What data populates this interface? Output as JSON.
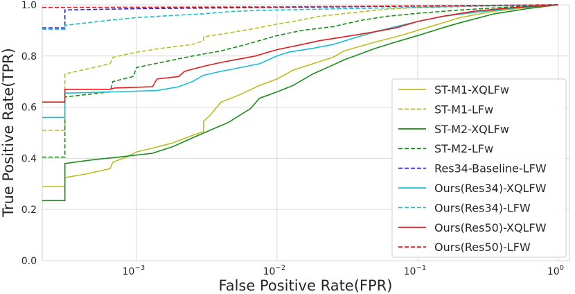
{
  "chart_data": {
    "type": "line",
    "xscale": "log",
    "title": "",
    "xlabel": "False Positive Rate(FPR)",
    "ylabel": "True Positive Rate(TPR)",
    "xlim": [
      0.000214,
      1.2
    ],
    "ylim": [
      0.0,
      1.0
    ],
    "xticks": [
      {
        "value": 0.001,
        "mantissa": "10",
        "exp": "−3"
      },
      {
        "value": 0.01,
        "mantissa": "10",
        "exp": "−2"
      },
      {
        "value": 0.1,
        "mantissa": "10",
        "exp": "−1"
      },
      {
        "value": 1,
        "mantissa": "10",
        "exp": "0"
      }
    ],
    "yticks": [
      "0.0",
      "0.2",
      "0.4",
      "0.6",
      "0.8",
      "1.0"
    ],
    "grid": true,
    "legend_position": "bottom-right",
    "series": [
      {
        "name": "ST-M1-XQLFw",
        "color": "#bcbd22",
        "dash": "solid",
        "points": [
          [
            0.0002,
            0.29
          ],
          [
            0.00031,
            0.29
          ],
          [
            0.00031,
            0.325
          ],
          [
            0.00045,
            0.34
          ],
          [
            0.00065,
            0.36
          ],
          [
            0.00068,
            0.385
          ],
          [
            0.00085,
            0.405
          ],
          [
            0.001,
            0.425
          ],
          [
            0.0013,
            0.44
          ],
          [
            0.0018,
            0.46
          ],
          [
            0.0025,
            0.49
          ],
          [
            0.003,
            0.505
          ],
          [
            0.003,
            0.545
          ],
          [
            0.0033,
            0.565
          ],
          [
            0.004,
            0.62
          ],
          [
            0.0055,
            0.65
          ],
          [
            0.0075,
            0.685
          ],
          [
            0.01,
            0.71
          ],
          [
            0.013,
            0.745
          ],
          [
            0.018,
            0.77
          ],
          [
            0.025,
            0.795
          ],
          [
            0.03,
            0.82
          ],
          [
            0.05,
            0.855
          ],
          [
            0.07,
            0.875
          ],
          [
            0.1,
            0.9
          ],
          [
            0.2,
            0.95
          ],
          [
            0.35,
            0.975
          ],
          [
            0.6,
            0.99
          ],
          [
            1.0,
            1.0
          ]
        ]
      },
      {
        "name": "ST-M1-LFw",
        "color": "#bcbd22",
        "dash": "dashed",
        "points": [
          [
            0.0002,
            0.51
          ],
          [
            0.00031,
            0.51
          ],
          [
            0.00031,
            0.73
          ],
          [
            0.00045,
            0.75
          ],
          [
            0.00065,
            0.77
          ],
          [
            0.00068,
            0.795
          ],
          [
            0.001,
            0.815
          ],
          [
            0.0015,
            0.83
          ],
          [
            0.0025,
            0.845
          ],
          [
            0.003,
            0.86
          ],
          [
            0.003,
            0.875
          ],
          [
            0.0045,
            0.89
          ],
          [
            0.0065,
            0.905
          ],
          [
            0.01,
            0.925
          ],
          [
            0.013,
            0.935
          ],
          [
            0.02,
            0.955
          ],
          [
            0.035,
            0.97
          ],
          [
            0.06,
            0.983
          ],
          [
            0.1,
            0.99
          ],
          [
            0.3,
            0.997
          ],
          [
            1.0,
            1.0
          ]
        ]
      },
      {
        "name": "ST-M2-XQLFw",
        "color": "#1a8c1a",
        "dash": "solid",
        "points": [
          [
            0.0002,
            0.235
          ],
          [
            0.00031,
            0.235
          ],
          [
            0.00031,
            0.38
          ],
          [
            0.0005,
            0.395
          ],
          [
            0.00075,
            0.405
          ],
          [
            0.0013,
            0.42
          ],
          [
            0.0018,
            0.445
          ],
          [
            0.0025,
            0.48
          ],
          [
            0.0035,
            0.515
          ],
          [
            0.0045,
            0.54
          ],
          [
            0.0065,
            0.595
          ],
          [
            0.0075,
            0.635
          ],
          [
            0.01,
            0.66
          ],
          [
            0.013,
            0.685
          ],
          [
            0.018,
            0.73
          ],
          [
            0.025,
            0.765
          ],
          [
            0.03,
            0.785
          ],
          [
            0.05,
            0.83
          ],
          [
            0.07,
            0.855
          ],
          [
            0.1,
            0.88
          ],
          [
            0.15,
            0.91
          ],
          [
            0.2,
            0.93
          ],
          [
            0.35,
            0.965
          ],
          [
            0.6,
            0.985
          ],
          [
            1.0,
            1.0
          ]
        ]
      },
      {
        "name": "ST-M2-LFw",
        "color": "#1a8c1a",
        "dash": "dashed",
        "points": [
          [
            0.0002,
            0.405
          ],
          [
            0.00031,
            0.405
          ],
          [
            0.00031,
            0.64
          ],
          [
            0.00045,
            0.65
          ],
          [
            0.00065,
            0.66
          ],
          [
            0.00068,
            0.7
          ],
          [
            0.00095,
            0.72
          ],
          [
            0.001,
            0.755
          ],
          [
            0.0015,
            0.775
          ],
          [
            0.0025,
            0.8
          ],
          [
            0.004,
            0.82
          ],
          [
            0.006,
            0.845
          ],
          [
            0.01,
            0.88
          ],
          [
            0.015,
            0.9
          ],
          [
            0.025,
            0.915
          ],
          [
            0.04,
            0.94
          ],
          [
            0.06,
            0.955
          ],
          [
            0.1,
            0.967
          ],
          [
            0.2,
            0.98
          ],
          [
            0.5,
            0.993
          ],
          [
            1.0,
            1.0
          ]
        ]
      },
      {
        "name": "Res34-Baseline-LFW",
        "color": "#2222cc",
        "dash": "dashed",
        "points": [
          [
            0.0002,
            0.91
          ],
          [
            0.00031,
            0.91
          ],
          [
            0.00031,
            0.98
          ],
          [
            0.001,
            0.985
          ],
          [
            0.01,
            0.99
          ],
          [
            0.1,
            0.995
          ],
          [
            1.0,
            1.0
          ]
        ]
      },
      {
        "name": "Ours(Res34)-XQLFW",
        "color": "#17becf",
        "dash": "solid",
        "points": [
          [
            0.0002,
            0.56
          ],
          [
            0.00031,
            0.56
          ],
          [
            0.00031,
            0.655
          ],
          [
            0.0007,
            0.66
          ],
          [
            0.0014,
            0.665
          ],
          [
            0.002,
            0.68
          ],
          [
            0.0025,
            0.7
          ],
          [
            0.003,
            0.725
          ],
          [
            0.004,
            0.74
          ],
          [
            0.0055,
            0.755
          ],
          [
            0.0075,
            0.77
          ],
          [
            0.01,
            0.8
          ],
          [
            0.012,
            0.815
          ],
          [
            0.018,
            0.83
          ],
          [
            0.025,
            0.845
          ],
          [
            0.035,
            0.87
          ],
          [
            0.05,
            0.895
          ],
          [
            0.07,
            0.915
          ],
          [
            0.1,
            0.935
          ],
          [
            0.15,
            0.955
          ],
          [
            0.25,
            0.97
          ],
          [
            0.5,
            0.988
          ],
          [
            1.0,
            1.0
          ]
        ]
      },
      {
        "name": "Ours(Res34)-LFW",
        "color": "#17becf",
        "dash": "dashed",
        "points": [
          [
            0.0002,
            0.905
          ],
          [
            0.00031,
            0.905
          ],
          [
            0.00031,
            0.92
          ],
          [
            0.00065,
            0.94
          ],
          [
            0.001,
            0.95
          ],
          [
            0.002,
            0.96
          ],
          [
            0.003,
            0.965
          ],
          [
            0.005,
            0.975
          ],
          [
            0.01,
            0.98
          ],
          [
            0.03,
            0.985
          ],
          [
            0.1,
            0.99
          ],
          [
            0.3,
            0.995
          ],
          [
            1.0,
            1.0
          ]
        ]
      },
      {
        "name": "Ours(Res50)-XQLFW",
        "color": "#e41a1c",
        "dash": "solid",
        "points": [
          [
            0.0002,
            0.62
          ],
          [
            0.00031,
            0.62
          ],
          [
            0.00031,
            0.67
          ],
          [
            0.00065,
            0.67
          ],
          [
            0.0007,
            0.675
          ],
          [
            0.0013,
            0.68
          ],
          [
            0.0014,
            0.71
          ],
          [
            0.002,
            0.72
          ],
          [
            0.0022,
            0.74
          ],
          [
            0.003,
            0.76
          ],
          [
            0.004,
            0.775
          ],
          [
            0.005,
            0.785
          ],
          [
            0.007,
            0.8
          ],
          [
            0.01,
            0.825
          ],
          [
            0.015,
            0.845
          ],
          [
            0.02,
            0.86
          ],
          [
            0.03,
            0.875
          ],
          [
            0.05,
            0.895
          ],
          [
            0.07,
            0.91
          ],
          [
            0.1,
            0.935
          ],
          [
            0.15,
            0.955
          ],
          [
            0.25,
            0.975
          ],
          [
            0.5,
            0.99
          ],
          [
            1.0,
            1.0
          ]
        ]
      },
      {
        "name": "Ours(Res50)-LFW",
        "color": "#e41a1c",
        "dash": "dashed",
        "points": [
          [
            0.0002,
            0.99
          ],
          [
            0.01,
            0.992
          ],
          [
            0.1,
            0.996
          ],
          [
            1.0,
            1.0
          ]
        ]
      }
    ]
  }
}
